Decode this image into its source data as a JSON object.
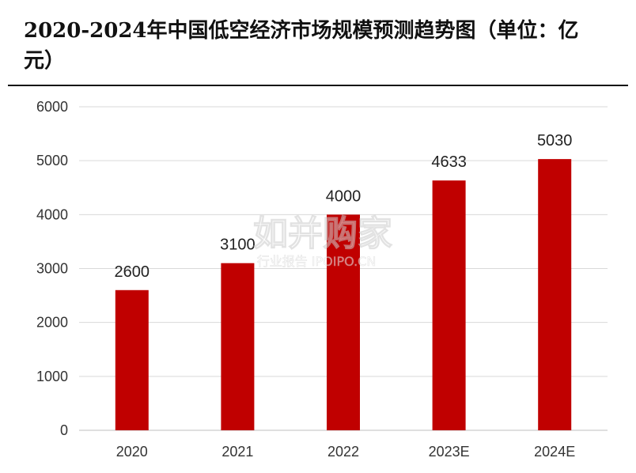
{
  "title": "2020-2024年中国低空经济市场规模预测趋势图（单位：亿元）",
  "watermark": {
    "brand": "如并购家",
    "sub": "行业报告 IPOIPO.CN"
  },
  "colors": {
    "bar": "#C00000",
    "grid": "#D9D9D9",
    "text": "#333333"
  },
  "chart_data": {
    "type": "bar",
    "title": "2020-2024年中国低空经济市场规模预测趋势图（单位：亿元）",
    "categories": [
      "2020",
      "2021",
      "2022",
      "2023E",
      "2024E"
    ],
    "values": [
      2600,
      3100,
      4000,
      4633,
      5030
    ],
    "data_labels": [
      "2600",
      "3100",
      "4000",
      "4633",
      "5030"
    ],
    "xlabel": "",
    "ylabel": "",
    "ylim": [
      0,
      6000
    ],
    "yticks": [
      0,
      1000,
      2000,
      3000,
      4000,
      5000,
      6000
    ],
    "grid": true,
    "legend": "none"
  }
}
